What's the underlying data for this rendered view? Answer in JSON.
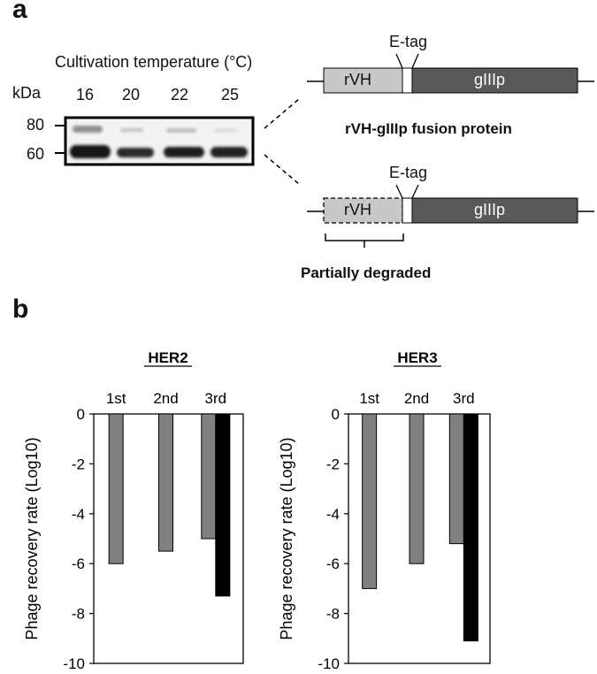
{
  "panel_a": {
    "letter": "a",
    "blot": {
      "title": "Cultivation temperature  (°C)",
      "unit": "kDa",
      "lanes": [
        "16",
        "20",
        "22",
        "25"
      ],
      "markers": [
        "80",
        "60"
      ]
    },
    "construct_intact": {
      "tag_label": "E-tag",
      "domain_left": "rVH",
      "domain_right": "gIIIp",
      "caption": "rVH-gIIIp fusion protein"
    },
    "construct_degraded": {
      "tag_label": "E-tag",
      "domain_left": "rVH",
      "domain_right": "gIIIp",
      "caption": "Partially degraded"
    },
    "colors": {
      "rvh": "#c8c8c8",
      "giiip": "#595959"
    }
  },
  "panel_b": {
    "letter": "b",
    "ylabel": "Phage recovery rate (Log10)"
  },
  "chart_data": [
    {
      "type": "bar",
      "title": "HER2",
      "categories": [
        "1st",
        "2nd",
        "3rd"
      ],
      "series": [
        {
          "values": [
            -6.0,
            -5.5,
            -5.0
          ],
          "color": "#808080"
        },
        {
          "values": [
            null,
            null,
            -7.3
          ],
          "color": "#000000"
        }
      ],
      "ylabel": "Phage recovery rate (Log10)",
      "yticks": [
        "0",
        "-2",
        "-4",
        "-6",
        "-8",
        "-10"
      ],
      "ylim": [
        -10,
        0
      ],
      "grid": false
    },
    {
      "type": "bar",
      "title": "HER3",
      "categories": [
        "1st",
        "2nd",
        "3rd"
      ],
      "series": [
        {
          "values": [
            -7.0,
            -6.0,
            -5.2
          ],
          "color": "#808080"
        },
        {
          "values": [
            null,
            null,
            -9.1
          ],
          "color": "#000000"
        }
      ],
      "ylabel": "Phage recovery rate (Log10)",
      "yticks": [
        "0",
        "-2",
        "-4",
        "-6",
        "-8",
        "-10"
      ],
      "ylim": [
        -10,
        0
      ],
      "grid": false
    }
  ]
}
